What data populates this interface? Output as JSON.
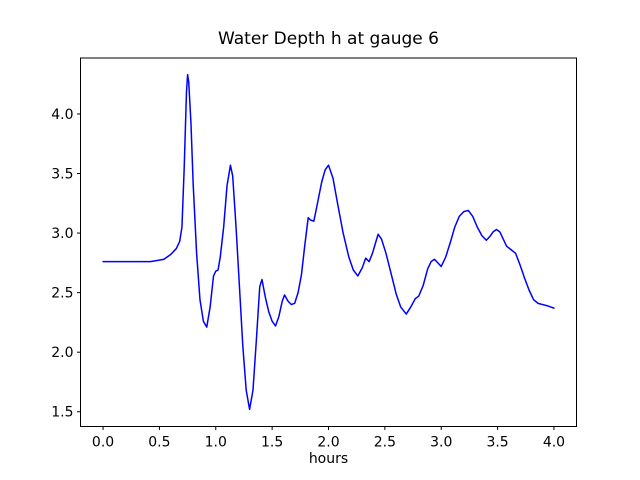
{
  "chart_data": {
    "type": "line",
    "title": "Water Depth h at gauge 6",
    "xlabel": "hours",
    "ylabel": "",
    "xlim": [
      -0.2,
      4.2
    ],
    "ylim": [
      1.376,
      4.47
    ],
    "x_ticks": [
      "0.0",
      "0.5",
      "1.0",
      "1.5",
      "2.0",
      "2.5",
      "3.0",
      "3.5",
      "4.0"
    ],
    "x_tick_values": [
      0.0,
      0.5,
      1.0,
      1.5,
      2.0,
      2.5,
      3.0,
      3.5,
      4.0
    ],
    "y_ticks": [
      "1.5",
      "2.0",
      "2.5",
      "3.0",
      "3.5",
      "4.0"
    ],
    "y_tick_values": [
      1.5,
      2.0,
      2.5,
      3.0,
      3.5,
      4.0
    ],
    "grid": false,
    "legend": null,
    "colors": {
      "line": "#0000ff",
      "frame": "#000000",
      "text": "#000000",
      "background": "#ffffff"
    },
    "series": [
      {
        "name": "h",
        "x": [
          0.0,
          0.06,
          0.12,
          0.18,
          0.24,
          0.3,
          0.36,
          0.42,
          0.48,
          0.54,
          0.6,
          0.65,
          0.68,
          0.7,
          0.72,
          0.74,
          0.75,
          0.76,
          0.78,
          0.8,
          0.83,
          0.86,
          0.89,
          0.92,
          0.95,
          0.98,
          1.0,
          1.02,
          1.04,
          1.07,
          1.1,
          1.13,
          1.15,
          1.18,
          1.21,
          1.24,
          1.27,
          1.3,
          1.33,
          1.36,
          1.39,
          1.41,
          1.44,
          1.47,
          1.5,
          1.53,
          1.56,
          1.59,
          1.61,
          1.64,
          1.67,
          1.7,
          1.73,
          1.76,
          1.79,
          1.82,
          1.84,
          1.87,
          1.9,
          1.94,
          1.97,
          2.0,
          2.04,
          2.08,
          2.13,
          2.18,
          2.22,
          2.26,
          2.3,
          2.33,
          2.36,
          2.39,
          2.44,
          2.47,
          2.51,
          2.55,
          2.6,
          2.64,
          2.69,
          2.73,
          2.77,
          2.8,
          2.84,
          2.88,
          2.91,
          2.94,
          2.97,
          3.0,
          3.04,
          3.08,
          3.12,
          3.16,
          3.2,
          3.24,
          3.28,
          3.32,
          3.36,
          3.4,
          3.43,
          3.46,
          3.49,
          3.52,
          3.55,
          3.58,
          3.62,
          3.66,
          3.7,
          3.74,
          3.78,
          3.82,
          3.86,
          3.9,
          3.94,
          3.97,
          4.0
        ],
        "y": [
          2.76,
          2.76,
          2.76,
          2.76,
          2.76,
          2.76,
          2.76,
          2.76,
          2.77,
          2.78,
          2.82,
          2.87,
          2.93,
          3.05,
          3.55,
          4.18,
          4.33,
          4.27,
          3.92,
          3.4,
          2.83,
          2.44,
          2.26,
          2.21,
          2.38,
          2.64,
          2.68,
          2.69,
          2.8,
          3.05,
          3.4,
          3.57,
          3.48,
          3.05,
          2.55,
          2.05,
          1.68,
          1.52,
          1.68,
          2.1,
          2.55,
          2.61,
          2.46,
          2.34,
          2.26,
          2.22,
          2.3,
          2.43,
          2.48,
          2.43,
          2.4,
          2.41,
          2.5,
          2.65,
          2.9,
          3.13,
          3.11,
          3.1,
          3.24,
          3.43,
          3.53,
          3.57,
          3.46,
          3.25,
          3.0,
          2.8,
          2.69,
          2.64,
          2.71,
          2.79,
          2.76,
          2.83,
          2.99,
          2.95,
          2.83,
          2.68,
          2.49,
          2.38,
          2.32,
          2.38,
          2.45,
          2.47,
          2.56,
          2.7,
          2.76,
          2.78,
          2.75,
          2.72,
          2.8,
          2.92,
          3.05,
          3.14,
          3.18,
          3.19,
          3.14,
          3.05,
          2.98,
          2.94,
          2.97,
          3.01,
          3.03,
          3.01,
          2.95,
          2.89,
          2.86,
          2.83,
          2.73,
          2.62,
          2.52,
          2.44,
          2.41,
          2.4,
          2.39,
          2.38,
          2.37
        ]
      }
    ]
  }
}
